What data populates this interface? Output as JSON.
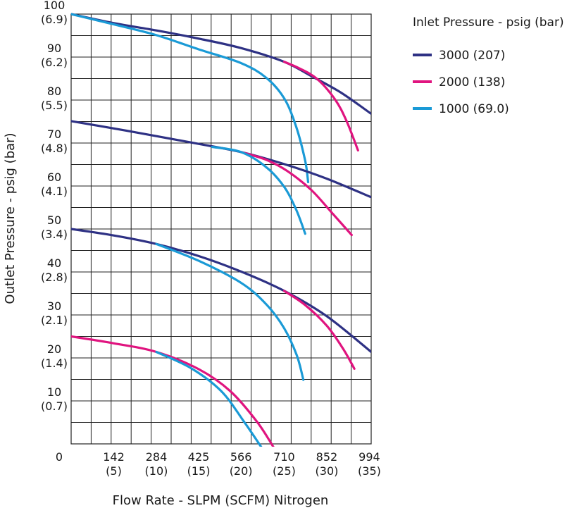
{
  "chart_data": {
    "type": "line",
    "xlabel": "Flow Rate - SLPM (SCFM) Nitrogen",
    "ylabel": "Outlet Pressure - psig (bar)",
    "xlim": [
      0,
      1000
    ],
    "ylim": [
      0,
      100
    ],
    "grid": true,
    "legend": {
      "title": "Inlet Pressure - psig (bar)",
      "placement": "top-right",
      "entries": [
        {
          "label": "3000 (207)",
          "color": "#2e3184"
        },
        {
          "label": "2000 (138)",
          "color": "#e0147f"
        },
        {
          "label": "1000 (69.0)",
          "color": "#1a9ad6"
        }
      ]
    },
    "x_ticks": [
      {
        "value": 0,
        "label": "0",
        "sub": ""
      },
      {
        "value": 142,
        "label": "142",
        "sub": "(5)"
      },
      {
        "value": 284,
        "label": "284",
        "sub": "(10)"
      },
      {
        "value": 425,
        "label": "425",
        "sub": "(15)"
      },
      {
        "value": 566,
        "label": "566",
        "sub": "(20)"
      },
      {
        "value": 710,
        "label": "710",
        "sub": "(25)"
      },
      {
        "value": 852,
        "label": "852",
        "sub": "(30)"
      },
      {
        "value": 994,
        "label": "994",
        "sub": "(35)"
      }
    ],
    "y_ticks": [
      {
        "value": 100,
        "label": "100",
        "sub": "(6.9)"
      },
      {
        "value": 90,
        "label": "90",
        "sub": "(6.2)"
      },
      {
        "value": 80,
        "label": "80",
        "sub": "(5.5)"
      },
      {
        "value": 70,
        "label": "70",
        "sub": "(4.8)"
      },
      {
        "value": 60,
        "label": "60",
        "sub": "(4.1)"
      },
      {
        "value": 50,
        "label": "50",
        "sub": "(3.4)"
      },
      {
        "value": 40,
        "label": "40",
        "sub": "(2.8)"
      },
      {
        "value": 30,
        "label": "30",
        "sub": "(2.1)"
      },
      {
        "value": 20,
        "label": "20",
        "sub": "(1.4)"
      },
      {
        "value": 10,
        "label": "10",
        "sub": "(0.7)"
      }
    ],
    "series": [
      {
        "name": "3000 (207)",
        "color": "#2e3184",
        "setpoint": 100,
        "points": [
          [
            0,
            100
          ],
          [
            142,
            97.9
          ],
          [
            284,
            96.2
          ],
          [
            425,
            94.3
          ],
          [
            566,
            92.1
          ],
          [
            710,
            88.9
          ],
          [
            800,
            85.6
          ],
          [
            900,
            81.7
          ],
          [
            1000,
            76.8
          ]
        ]
      },
      {
        "name": "2000 (138)",
        "color": "#e0147f",
        "setpoint": 100,
        "points": [
          [
            710,
            88.9
          ],
          [
            760,
            87.4
          ],
          [
            820,
            84.9
          ],
          [
            880,
            80.1
          ],
          [
            918,
            75.1
          ],
          [
            956,
            68.3
          ]
        ]
      },
      {
        "name": "1000 (69.0)",
        "color": "#1a9ad6",
        "setpoint": 100,
        "points": [
          [
            0,
            100
          ],
          [
            142,
            97.6
          ],
          [
            284,
            95.1
          ],
          [
            425,
            91.8
          ],
          [
            566,
            88.6
          ],
          [
            650,
            85.2
          ],
          [
            710,
            80.4
          ],
          [
            750,
            73.8
          ],
          [
            780,
            65.9
          ],
          [
            790,
            60.9
          ]
        ]
      },
      {
        "name": "3000 (207)",
        "color": "#2e3184",
        "setpoint": 75,
        "points": [
          [
            0,
            75.1
          ],
          [
            142,
            73.4
          ],
          [
            284,
            71.6
          ],
          [
            425,
            69.8
          ],
          [
            566,
            67.9
          ],
          [
            710,
            65.1
          ],
          [
            852,
            61.7
          ],
          [
            1000,
            57.4
          ]
        ]
      },
      {
        "name": "2000 (138)",
        "color": "#e0147f",
        "setpoint": 75,
        "points": [
          [
            566,
            67.9
          ],
          [
            650,
            66.1
          ],
          [
            720,
            63.5
          ],
          [
            800,
            59.1
          ],
          [
            870,
            53.7
          ],
          [
            935,
            48.6
          ]
        ]
      },
      {
        "name": "1000 (69.0)",
        "color": "#1a9ad6",
        "setpoint": 75,
        "points": [
          [
            470,
            69.1
          ],
          [
            566,
            67.9
          ],
          [
            650,
            64.4
          ],
          [
            710,
            59.8
          ],
          [
            750,
            54.5
          ],
          [
            780,
            48.9
          ]
        ]
      },
      {
        "name": "3000 (207)",
        "color": "#2e3184",
        "setpoint": 50,
        "points": [
          [
            0,
            50
          ],
          [
            142,
            48.5
          ],
          [
            284,
            46.5
          ],
          [
            425,
            43.7
          ],
          [
            566,
            40.1
          ],
          [
            710,
            35.6
          ],
          [
            852,
            29.7
          ],
          [
            1000,
            21.4
          ]
        ]
      },
      {
        "name": "2000 (138)",
        "color": "#e0147f",
        "setpoint": 50,
        "points": [
          [
            710,
            35.6
          ],
          [
            780,
            32.3
          ],
          [
            852,
            27.5
          ],
          [
            905,
            22.3
          ],
          [
            944,
            17.5
          ]
        ]
      },
      {
        "name": "1000 (69.0)",
        "color": "#1a9ad6",
        "setpoint": 50,
        "points": [
          [
            284,
            46.5
          ],
          [
            425,
            42.6
          ],
          [
            566,
            37.5
          ],
          [
            650,
            32.5
          ],
          [
            710,
            26.9
          ],
          [
            752,
            20.6
          ],
          [
            774,
            14.9
          ]
        ]
      },
      {
        "name": "2000 (138)",
        "color": "#e0147f",
        "setpoint": 25,
        "points": [
          [
            0,
            25
          ],
          [
            142,
            23.4
          ],
          [
            284,
            21.4
          ],
          [
            425,
            17.4
          ],
          [
            530,
            12.3
          ],
          [
            620,
            5.1
          ],
          [
            680,
            -1.4
          ]
        ]
      },
      {
        "name": "1000 (69.0)",
        "color": "#1a9ad6",
        "setpoint": 25,
        "points": [
          [
            284,
            21.4
          ],
          [
            400,
            17.6
          ],
          [
            500,
            12.3
          ],
          [
            575,
            5.3
          ],
          [
            640,
            -1.4
          ]
        ]
      }
    ]
  }
}
